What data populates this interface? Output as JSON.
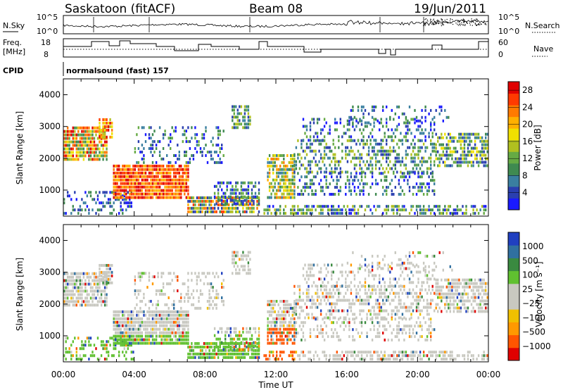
{
  "header": {
    "title": "Saskatoon (fitACF)",
    "beam": "Beam 08",
    "date": "19/Jun/2011"
  },
  "params": {
    "nsky_label": "N.Sky",
    "nsky_ticks": [
      "10^5",
      "10^0"
    ],
    "nsearch_label": "N.Search",
    "nsearch_ticks": [
      "10^5",
      "10^0"
    ],
    "freq_label_1": "Freq.",
    "freq_label_2": "[MHz]",
    "freq_ticks": [
      "18",
      "8"
    ],
    "nave_label": "Nave",
    "nave_ticks": [
      "60",
      "0"
    ],
    "cpid_label": "CPID",
    "cpid_value": "normalsound (fast) 157"
  },
  "colors": {
    "power": [
      "#1a1aff",
      "#2a3fb0",
      "#3a7fa0",
      "#3f8a50",
      "#66aa44",
      "#b0c020",
      "#f0e000",
      "#ffb000",
      "#ff7a00",
      "#ff3a00",
      "#e00000"
    ],
    "velocity": [
      "#e00000",
      "#ff5500",
      "#ff9900",
      "#f0c000",
      "#c8c8c0",
      "#c8c8c0",
      "#60c030",
      "#3a8a40",
      "#3070a0",
      "#2040c0"
    ]
  },
  "chart_data": [
    {
      "type": "heatmap",
      "title": "Power",
      "ylabel": "Slant Range [km]",
      "xlim": [
        "00:00",
        "24:00"
      ],
      "ylim": [
        180,
        4500
      ],
      "yticks": [
        "1000",
        "2000",
        "3000",
        "4000"
      ],
      "colorbar": {
        "label": "Power [dB]",
        "ticks": [
          "4",
          "8",
          "12",
          "16",
          "20",
          "24",
          "28"
        ],
        "range": [
          0,
          30
        ]
      }
    },
    {
      "type": "heatmap",
      "title": "Velocity",
      "ylabel": "Slant Range [km]",
      "xlabel": "Time UT",
      "xlim": [
        "00:00",
        "24:00"
      ],
      "ylim": [
        180,
        4500
      ],
      "xticks": [
        "00:00",
        "04:00",
        "08:00",
        "12:00",
        "16:00",
        "20:00",
        "00:00"
      ],
      "yticks": [
        "1000",
        "2000",
        "3000",
        "4000"
      ],
      "colorbar": {
        "label": "Velocity [m s⁻¹]",
        "ticks": [
          "1000",
          "500",
          "100",
          "25",
          "−25",
          "−100",
          "−500",
          "−1000"
        ]
      }
    }
  ]
}
